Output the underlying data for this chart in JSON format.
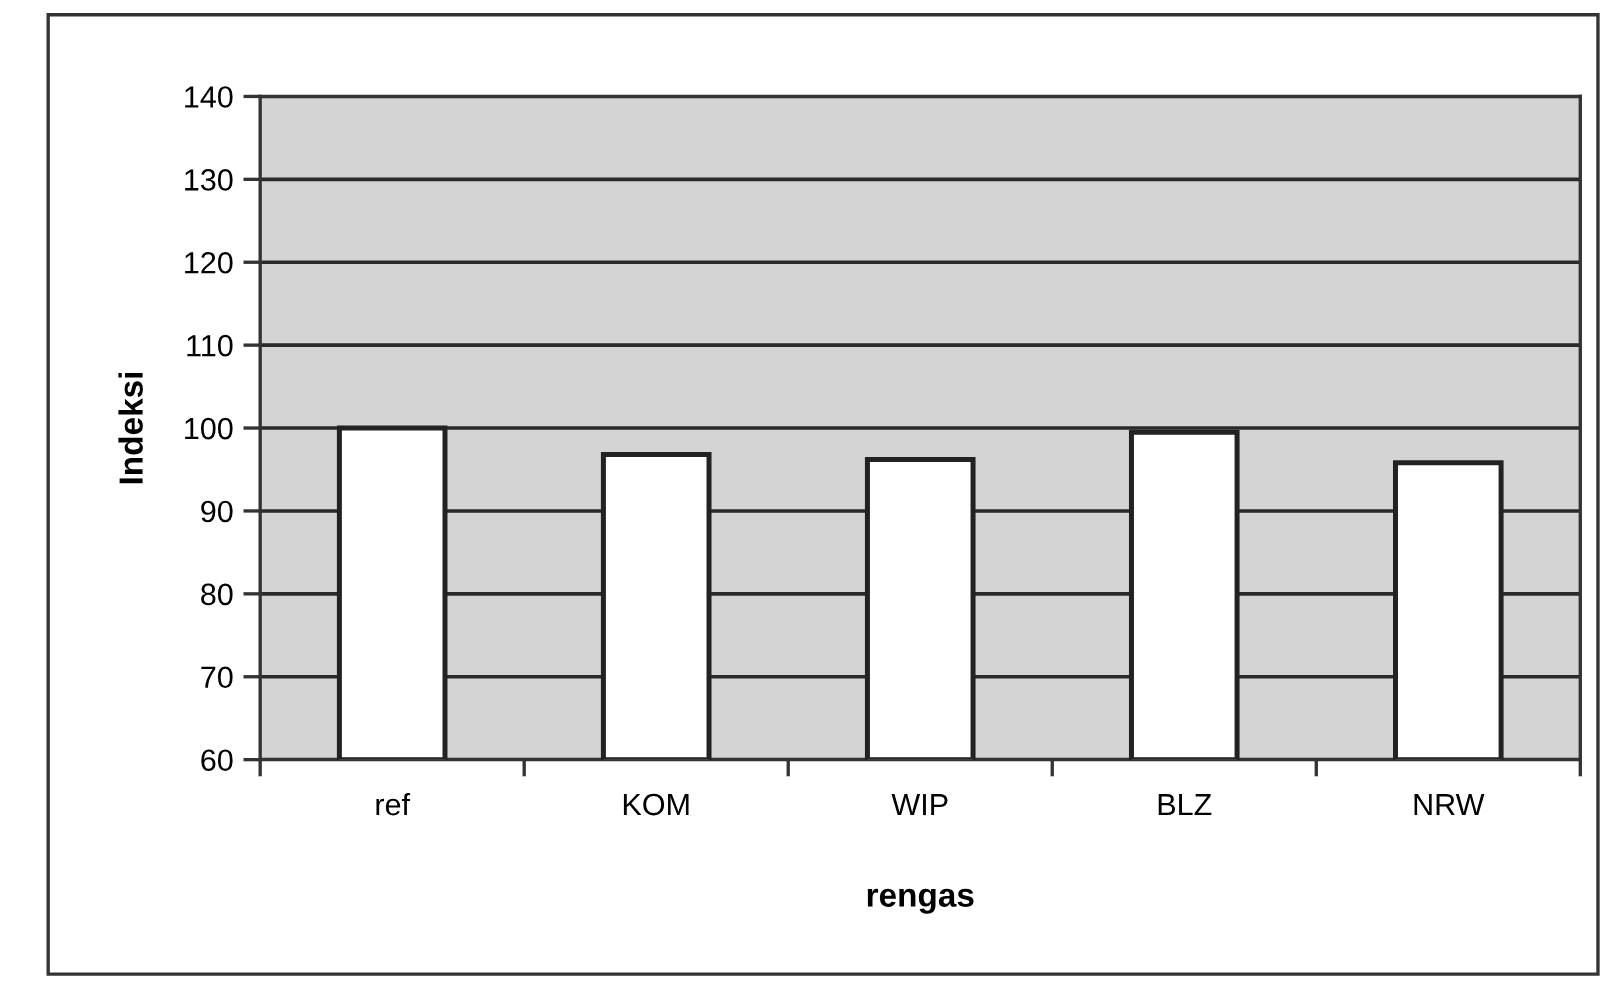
{
  "chart_data": {
    "type": "bar",
    "categories": [
      "ref",
      "KOM",
      "WIP",
      "BLZ",
      "NRW"
    ],
    "values": [
      100,
      96.8,
      96.2,
      99.5,
      95.8
    ],
    "color": "#ffffff",
    "xlabel": "rengas",
    "ylabel": "Indeksi",
    "ylim": [
      60,
      140
    ],
    "yticks": [
      60,
      70,
      80,
      90,
      100,
      110,
      120,
      130,
      140
    ],
    "grid": "y",
    "legend": false
  }
}
